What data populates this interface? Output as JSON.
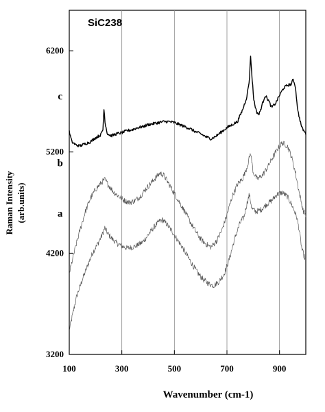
{
  "chart_data": {
    "type": "line",
    "title": "SiC238",
    "xlabel": "Wavenumber (cm-1)",
    "ylabel_line1": "Raman Intensity",
    "ylabel_line2": "(arb.units)",
    "xlim": [
      100,
      1000
    ],
    "ylim": [
      3200,
      6600
    ],
    "x_ticks": [
      100,
      300,
      500,
      700,
      900
    ],
    "y_ticks": [
      3200,
      4200,
      5200,
      6200
    ],
    "x_tick_labels": [
      "100",
      "300",
      "500",
      "700",
      "900"
    ],
    "y_tick_labels": [
      "3200",
      "4200",
      "5200",
      "6200"
    ],
    "vertical_gridlines": [
      300,
      500,
      700,
      900
    ],
    "series": [
      {
        "name": "a",
        "color": "#555555",
        "points": [
          [
            100,
            3440
          ],
          [
            115,
            3620
          ],
          [
            130,
            3790
          ],
          [
            150,
            3940
          ],
          [
            170,
            4080
          ],
          [
            190,
            4210
          ],
          [
            210,
            4300
          ],
          [
            225,
            4380
          ],
          [
            235,
            4450
          ],
          [
            245,
            4400
          ],
          [
            260,
            4350
          ],
          [
            280,
            4300
          ],
          [
            300,
            4270
          ],
          [
            320,
            4250
          ],
          [
            340,
            4260
          ],
          [
            360,
            4280
          ],
          [
            380,
            4310
          ],
          [
            400,
            4380
          ],
          [
            420,
            4450
          ],
          [
            440,
            4510
          ],
          [
            455,
            4530
          ],
          [
            470,
            4490
          ],
          [
            490,
            4420
          ],
          [
            510,
            4340
          ],
          [
            530,
            4260
          ],
          [
            550,
            4170
          ],
          [
            570,
            4080
          ],
          [
            590,
            4000
          ],
          [
            610,
            3940
          ],
          [
            630,
            3900
          ],
          [
            650,
            3880
          ],
          [
            670,
            3920
          ],
          [
            690,
            4000
          ],
          [
            710,
            4150
          ],
          [
            730,
            4350
          ],
          [
            750,
            4500
          ],
          [
            765,
            4560
          ],
          [
            775,
            4680
          ],
          [
            785,
            4780
          ],
          [
            795,
            4640
          ],
          [
            810,
            4610
          ],
          [
            830,
            4630
          ],
          [
            850,
            4680
          ],
          [
            870,
            4720
          ],
          [
            890,
            4780
          ],
          [
            910,
            4800
          ],
          [
            930,
            4760
          ],
          [
            950,
            4660
          ],
          [
            965,
            4560
          ],
          [
            975,
            4430
          ],
          [
            985,
            4240
          ],
          [
            1000,
            4120
          ]
        ]
      },
      {
        "name": "b",
        "color": "#555555",
        "points": [
          [
            100,
            4000
          ],
          [
            120,
            4220
          ],
          [
            140,
            4420
          ],
          [
            160,
            4600
          ],
          [
            180,
            4740
          ],
          [
            200,
            4830
          ],
          [
            220,
            4890
          ],
          [
            235,
            4930
          ],
          [
            250,
            4870
          ],
          [
            270,
            4800
          ],
          [
            290,
            4760
          ],
          [
            310,
            4720
          ],
          [
            330,
            4700
          ],
          [
            350,
            4720
          ],
          [
            370,
            4760
          ],
          [
            390,
            4830
          ],
          [
            410,
            4890
          ],
          [
            430,
            4950
          ],
          [
            445,
            4990
          ],
          [
            460,
            4970
          ],
          [
            480,
            4880
          ],
          [
            500,
            4790
          ],
          [
            520,
            4700
          ],
          [
            540,
            4610
          ],
          [
            560,
            4510
          ],
          [
            580,
            4420
          ],
          [
            600,
            4340
          ],
          [
            620,
            4290
          ],
          [
            640,
            4260
          ],
          [
            660,
            4320
          ],
          [
            680,
            4420
          ],
          [
            700,
            4580
          ],
          [
            720,
            4760
          ],
          [
            740,
            4880
          ],
          [
            760,
            4940
          ],
          [
            775,
            5040
          ],
          [
            790,
            5190
          ],
          [
            800,
            5000
          ],
          [
            815,
            4930
          ],
          [
            835,
            4970
          ],
          [
            855,
            5050
          ],
          [
            875,
            5150
          ],
          [
            895,
            5240
          ],
          [
            910,
            5290
          ],
          [
            930,
            5260
          ],
          [
            945,
            5160
          ],
          [
            960,
            5000
          ],
          [
            975,
            4800
          ],
          [
            990,
            4620
          ],
          [
            1000,
            4580
          ]
        ]
      },
      {
        "name": "c",
        "color": "#000000",
        "points": [
          [
            100,
            5400
          ],
          [
            110,
            5300
          ],
          [
            125,
            5270
          ],
          [
            140,
            5260
          ],
          [
            160,
            5280
          ],
          [
            180,
            5300
          ],
          [
            200,
            5340
          ],
          [
            220,
            5370
          ],
          [
            228,
            5420
          ],
          [
            232,
            5620
          ],
          [
            237,
            5480
          ],
          [
            245,
            5380
          ],
          [
            260,
            5360
          ],
          [
            280,
            5380
          ],
          [
            300,
            5390
          ],
          [
            320,
            5410
          ],
          [
            340,
            5420
          ],
          [
            360,
            5440
          ],
          [
            380,
            5450
          ],
          [
            400,
            5470
          ],
          [
            420,
            5480
          ],
          [
            440,
            5490
          ],
          [
            460,
            5500
          ],
          [
            480,
            5500
          ],
          [
            500,
            5490
          ],
          [
            520,
            5470
          ],
          [
            540,
            5450
          ],
          [
            560,
            5430
          ],
          [
            580,
            5400
          ],
          [
            600,
            5380
          ],
          [
            620,
            5350
          ],
          [
            640,
            5330
          ],
          [
            660,
            5360
          ],
          [
            680,
            5400
          ],
          [
            700,
            5440
          ],
          [
            720,
            5470
          ],
          [
            740,
            5500
          ],
          [
            760,
            5620
          ],
          [
            775,
            5740
          ],
          [
            785,
            5900
          ],
          [
            790,
            6150
          ],
          [
            795,
            5950
          ],
          [
            802,
            5720
          ],
          [
            812,
            5600
          ],
          [
            822,
            5570
          ],
          [
            832,
            5650
          ],
          [
            845,
            5760
          ],
          [
            858,
            5710
          ],
          [
            870,
            5640
          ],
          [
            885,
            5680
          ],
          [
            900,
            5760
          ],
          [
            915,
            5830
          ],
          [
            930,
            5860
          ],
          [
            945,
            5870
          ],
          [
            952,
            5920
          ],
          [
            960,
            5850
          ],
          [
            970,
            5600
          ],
          [
            985,
            5440
          ],
          [
            1000,
            5380
          ]
        ]
      }
    ],
    "curve_labels": [
      {
        "text": "a",
        "x": 240,
        "y": 4560
      },
      {
        "text": "b",
        "x": 240,
        "y": 5060
      },
      {
        "text": "c",
        "x": 240,
        "y": 5720
      }
    ]
  }
}
